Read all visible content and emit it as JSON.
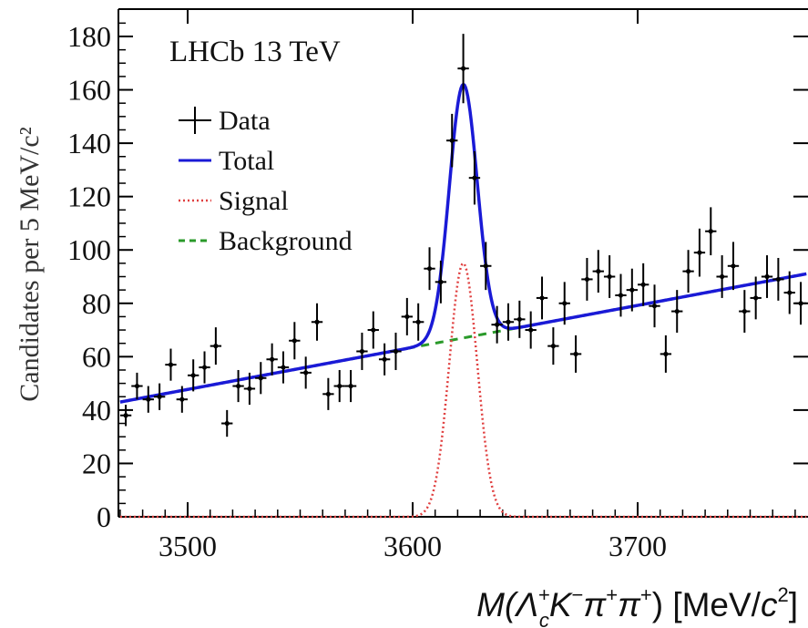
{
  "chart_data": {
    "type": "scatter",
    "title": "LHCb 13 TeV",
    "ylabel": "Candidates per 5 MeV/c²",
    "xlabel": {
      "prefix": "M(",
      "lambda": "Λ",
      "lambda_sub": "c",
      "lambda_sup": "+",
      "k": "K",
      "k_sup": "−",
      "pi1": "π",
      "pi1_sup": "+",
      "pi2": "π",
      "pi2_sup": "+",
      "mid": ") [MeV/",
      "c": "c",
      "c_sup": "2",
      "end": "]"
    },
    "xlim": [
      3470,
      3775
    ],
    "ylim": [
      0,
      188
    ],
    "x_ticks": [
      3500,
      3600,
      3700
    ],
    "y_ticks": [
      0,
      20,
      40,
      60,
      80,
      100,
      120,
      140,
      160,
      180
    ],
    "legend_placement": "top-left",
    "legend": [
      {
        "label": "Data",
        "style": "marker"
      },
      {
        "label": "Total",
        "style": "solid",
        "color": "#1a1ad6"
      },
      {
        "label": "Signal",
        "style": "dotted",
        "color": "#e04040"
      },
      {
        "label": "Background",
        "style": "dashed",
        "color": "#2a9a2a"
      }
    ],
    "data_points": [
      [
        3472.5,
        38,
        4
      ],
      [
        3477.5,
        49,
        5
      ],
      [
        3482.5,
        44,
        5
      ],
      [
        3487.5,
        45,
        5
      ],
      [
        3492.5,
        57,
        6
      ],
      [
        3497.5,
        44,
        5
      ],
      [
        3502.5,
        53,
        6
      ],
      [
        3507.5,
        56,
        6
      ],
      [
        3512.5,
        64,
        7
      ],
      [
        3517.5,
        35,
        5
      ],
      [
        3522.5,
        49,
        6
      ],
      [
        3527.5,
        48,
        6
      ],
      [
        3532.5,
        52,
        6
      ],
      [
        3537.5,
        59,
        6
      ],
      [
        3542.5,
        56,
        6
      ],
      [
        3547.5,
        66,
        7
      ],
      [
        3552.5,
        54,
        6
      ],
      [
        3557.5,
        73,
        7
      ],
      [
        3562.5,
        46,
        6
      ],
      [
        3567.5,
        49,
        6
      ],
      [
        3572.5,
        49,
        6
      ],
      [
        3577.5,
        62,
        7
      ],
      [
        3582.5,
        70,
        7
      ],
      [
        3587.5,
        59,
        6
      ],
      [
        3592.5,
        62,
        7
      ],
      [
        3597.5,
        75,
        7
      ],
      [
        3602.5,
        73,
        7
      ],
      [
        3607.5,
        93,
        8
      ],
      [
        3612.5,
        88,
        8
      ],
      [
        3617.5,
        141,
        10
      ],
      [
        3622.5,
        168,
        13
      ],
      [
        3627.5,
        127,
        10
      ],
      [
        3632.5,
        94,
        9
      ],
      [
        3637.5,
        72,
        7
      ],
      [
        3642.5,
        73,
        7
      ],
      [
        3647.5,
        74,
        7
      ],
      [
        3652.5,
        70,
        7
      ],
      [
        3657.5,
        82,
        8
      ],
      [
        3662.5,
        64,
        7
      ],
      [
        3667.5,
        80,
        8
      ],
      [
        3672.5,
        61,
        7
      ],
      [
        3677.5,
        89,
        8
      ],
      [
        3682.5,
        92,
        8
      ],
      [
        3687.5,
        90,
        8
      ],
      [
        3692.5,
        83,
        8
      ],
      [
        3697.5,
        85,
        8
      ],
      [
        3702.5,
        87,
        8
      ],
      [
        3707.5,
        79,
        8
      ],
      [
        3712.5,
        61,
        7
      ],
      [
        3717.5,
        77,
        8
      ],
      [
        3722.5,
        92,
        8
      ],
      [
        3727.5,
        99,
        9
      ],
      [
        3732.5,
        107,
        9
      ],
      [
        3737.5,
        90,
        8
      ],
      [
        3742.5,
        94,
        9
      ],
      [
        3747.5,
        77,
        8
      ],
      [
        3752.5,
        82,
        8
      ],
      [
        3757.5,
        90,
        8
      ],
      [
        3762.5,
        89,
        8
      ],
      [
        3767.5,
        84,
        8
      ],
      [
        3772.5,
        80,
        8
      ]
    ],
    "background_model": {
      "x0": 3470,
      "y0": 43,
      "slope": 0.1575
    },
    "signal_model": {
      "mean": 3622.5,
      "sigma": 6.2,
      "amplitude": 95
    }
  }
}
